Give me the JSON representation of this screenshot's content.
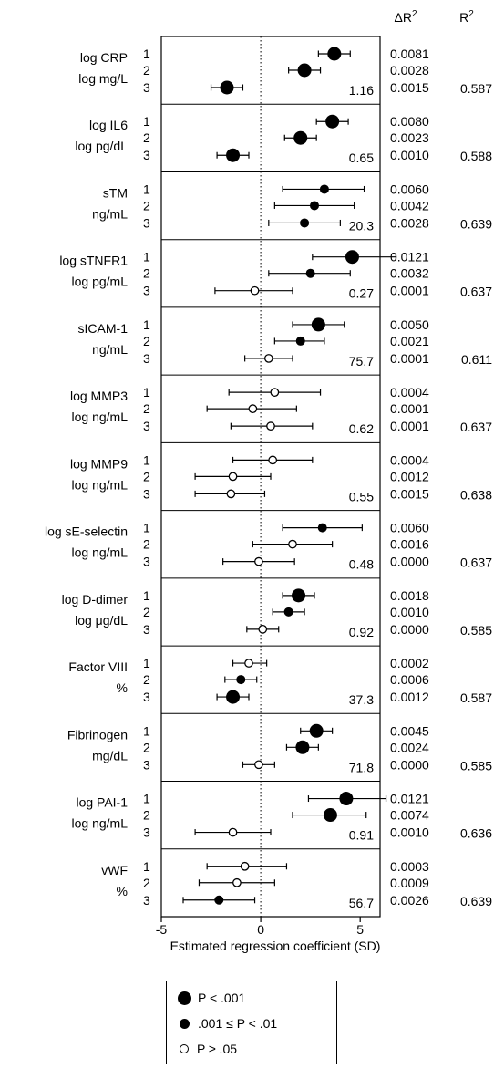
{
  "chart_data": {
    "type": "scatter",
    "subtype": "forest-plot",
    "xlabel": "Estimated regression coefficient (SD)",
    "xlim": [
      -5,
      6
    ],
    "xticks": [
      -5,
      0,
      5
    ],
    "reference_line_x": 0,
    "column_headers": {
      "delta_r2": "ΔR²",
      "r2": "R²"
    },
    "legend": [
      {
        "symbol": "large-filled",
        "label": "P < .001"
      },
      {
        "symbol": "small-filled",
        "label": ".001 ≤ P < .01"
      },
      {
        "symbol": "open",
        "label": "P ≥ .05"
      }
    ],
    "panels": [
      {
        "name": "log CRP",
        "unit": "log mg/L",
        "value": "1.16",
        "r2": "0.587",
        "rows": [
          {
            "model": "1",
            "est": 3.7,
            "lo": 2.9,
            "hi": 4.5,
            "sig": "p<.001",
            "delta_r2": "0.0081"
          },
          {
            "model": "2",
            "est": 2.2,
            "lo": 1.4,
            "hi": 3.0,
            "sig": "p<.001",
            "delta_r2": "0.0028"
          },
          {
            "model": "3",
            "est": -1.7,
            "lo": -2.5,
            "hi": -0.9,
            "sig": "p<.001",
            "delta_r2": "0.0015"
          }
        ]
      },
      {
        "name": "log IL6",
        "unit": "log pg/dL",
        "value": "0.65",
        "r2": "0.588",
        "rows": [
          {
            "model": "1",
            "est": 3.6,
            "lo": 2.8,
            "hi": 4.4,
            "sig": "p<.001",
            "delta_r2": "0.0080"
          },
          {
            "model": "2",
            "est": 2.0,
            "lo": 1.2,
            "hi": 2.8,
            "sig": "p<.001",
            "delta_r2": "0.0023"
          },
          {
            "model": "3",
            "est": -1.4,
            "lo": -2.2,
            "hi": -0.6,
            "sig": "p<.001",
            "delta_r2": "0.0010"
          }
        ]
      },
      {
        "name": "sTM",
        "unit": "ng/mL",
        "value": "20.3",
        "r2": "0.639",
        "rows": [
          {
            "model": "1",
            "est": 3.2,
            "lo": 1.1,
            "hi": 5.2,
            "sig": "p<.01",
            "delta_r2": "0.0060"
          },
          {
            "model": "2",
            "est": 2.7,
            "lo": 0.7,
            "hi": 4.7,
            "sig": "p<.01",
            "delta_r2": "0.0042"
          },
          {
            "model": "3",
            "est": 2.2,
            "lo": 0.4,
            "hi": 4.0,
            "sig": "p<.01",
            "delta_r2": "0.0028"
          }
        ]
      },
      {
        "name": "log sTNFR1",
        "unit": "log pg/mL",
        "value": "0.27",
        "r2": "0.637",
        "rows": [
          {
            "model": "1",
            "est": 4.6,
            "lo": 2.6,
            "hi": 6.8,
            "sig": "p<.001",
            "delta_r2": "0.0121"
          },
          {
            "model": "2",
            "est": 2.5,
            "lo": 0.4,
            "hi": 4.5,
            "sig": "p<.01",
            "delta_r2": "0.0032"
          },
          {
            "model": "3",
            "est": -0.3,
            "lo": -2.3,
            "hi": 1.6,
            "sig": "p>=.05",
            "delta_r2": "0.0001"
          }
        ]
      },
      {
        "name": "sICAM-1",
        "unit": "ng/mL",
        "value": "75.7",
        "r2": "0.611",
        "rows": [
          {
            "model": "1",
            "est": 2.9,
            "lo": 1.6,
            "hi": 4.2,
            "sig": "p<.001",
            "delta_r2": "0.0050"
          },
          {
            "model": "2",
            "est": 2.0,
            "lo": 0.7,
            "hi": 3.2,
            "sig": "p<.01",
            "delta_r2": "0.0021"
          },
          {
            "model": "3",
            "est": 0.4,
            "lo": -0.8,
            "hi": 1.6,
            "sig": "p>=.05",
            "delta_r2": "0.0001"
          }
        ]
      },
      {
        "name": "log MMP3",
        "unit": "log ng/mL",
        "value": "0.62",
        "r2": "0.637",
        "rows": [
          {
            "model": "1",
            "est": 0.7,
            "lo": -1.6,
            "hi": 3.0,
            "sig": "p>=.05",
            "delta_r2": "0.0004"
          },
          {
            "model": "2",
            "est": -0.4,
            "lo": -2.7,
            "hi": 1.8,
            "sig": "p>=.05",
            "delta_r2": "0.0001"
          },
          {
            "model": "3",
            "est": 0.5,
            "lo": -1.5,
            "hi": 2.6,
            "sig": "p>=.05",
            "delta_r2": "0.0001"
          }
        ]
      },
      {
        "name": "log MMP9",
        "unit": "log ng/mL",
        "value": "0.55",
        "r2": "0.638",
        "rows": [
          {
            "model": "1",
            "est": 0.6,
            "lo": -1.4,
            "hi": 2.6,
            "sig": "p>=.05",
            "delta_r2": "0.0004"
          },
          {
            "model": "2",
            "est": -1.4,
            "lo": -3.3,
            "hi": 0.5,
            "sig": "p>=.05",
            "delta_r2": "0.0012"
          },
          {
            "model": "3",
            "est": -1.5,
            "lo": -3.3,
            "hi": 0.2,
            "sig": "p>=.05",
            "delta_r2": "0.0015"
          }
        ]
      },
      {
        "name": "log sE-selectin",
        "unit": "log ng/mL",
        "value": "0.48",
        "r2": "0.637",
        "rows": [
          {
            "model": "1",
            "est": 3.1,
            "lo": 1.1,
            "hi": 5.1,
            "sig": "p<.01",
            "delta_r2": "0.0060"
          },
          {
            "model": "2",
            "est": 1.6,
            "lo": -0.4,
            "hi": 3.6,
            "sig": "p>=.05",
            "delta_r2": "0.0016"
          },
          {
            "model": "3",
            "est": -0.1,
            "lo": -1.9,
            "hi": 1.7,
            "sig": "p>=.05",
            "delta_r2": "0.0000"
          }
        ]
      },
      {
        "name": "log D-dimer",
        "unit": "log μg/dL",
        "value": "0.92",
        "r2": "0.585",
        "rows": [
          {
            "model": "1",
            "est": 1.9,
            "lo": 1.1,
            "hi": 2.7,
            "sig": "p<.001",
            "delta_r2": "0.0018"
          },
          {
            "model": "2",
            "est": 1.4,
            "lo": 0.6,
            "hi": 2.2,
            "sig": "p<.01",
            "delta_r2": "0.0010"
          },
          {
            "model": "3",
            "est": 0.1,
            "lo": -0.7,
            "hi": 0.9,
            "sig": "p>=.05",
            "delta_r2": "0.0000"
          }
        ]
      },
      {
        "name": "Factor VIII",
        "unit": "%",
        "value": "37.3",
        "r2": "0.587",
        "rows": [
          {
            "model": "1",
            "est": -0.6,
            "lo": -1.4,
            "hi": 0.3,
            "sig": "p>=.05",
            "delta_r2": "0.0002"
          },
          {
            "model": "2",
            "est": -1.0,
            "lo": -1.8,
            "hi": -0.2,
            "sig": "p<.01",
            "delta_r2": "0.0006"
          },
          {
            "model": "3",
            "est": -1.4,
            "lo": -2.2,
            "hi": -0.6,
            "sig": "p<.001",
            "delta_r2": "0.0012"
          }
        ]
      },
      {
        "name": "Fibrinogen",
        "unit": "mg/dL",
        "value": "71.8",
        "r2": "0.585",
        "rows": [
          {
            "model": "1",
            "est": 2.8,
            "lo": 2.0,
            "hi": 3.6,
            "sig": "p<.001",
            "delta_r2": "0.0045"
          },
          {
            "model": "2",
            "est": 2.1,
            "lo": 1.3,
            "hi": 2.9,
            "sig": "p<.001",
            "delta_r2": "0.0024"
          },
          {
            "model": "3",
            "est": -0.1,
            "lo": -0.9,
            "hi": 0.7,
            "sig": "p>=.05",
            "delta_r2": "0.0000"
          }
        ]
      },
      {
        "name": "log PAI-1",
        "unit": "log ng/mL",
        "value": "0.91",
        "r2": "0.636",
        "rows": [
          {
            "model": "1",
            "est": 4.3,
            "lo": 2.4,
            "hi": 6.3,
            "sig": "p<.001",
            "delta_r2": "0.0121"
          },
          {
            "model": "2",
            "est": 3.5,
            "lo": 1.6,
            "hi": 5.3,
            "sig": "p<.001",
            "delta_r2": "0.0074"
          },
          {
            "model": "3",
            "est": -1.4,
            "lo": -3.3,
            "hi": 0.5,
            "sig": "p>=.05",
            "delta_r2": "0.0010"
          }
        ]
      },
      {
        "name": "vWF",
        "unit": "%",
        "value": "56.7",
        "r2": "0.639",
        "rows": [
          {
            "model": "1",
            "est": -0.8,
            "lo": -2.7,
            "hi": 1.3,
            "sig": "p>=.05",
            "delta_r2": "0.0003"
          },
          {
            "model": "2",
            "est": -1.2,
            "lo": -3.1,
            "hi": 0.7,
            "sig": "p>=.05",
            "delta_r2": "0.0009"
          },
          {
            "model": "3",
            "est": -2.1,
            "lo": -3.9,
            "hi": -0.3,
            "sig": "p<.01",
            "delta_r2": "0.0026"
          }
        ]
      }
    ]
  }
}
